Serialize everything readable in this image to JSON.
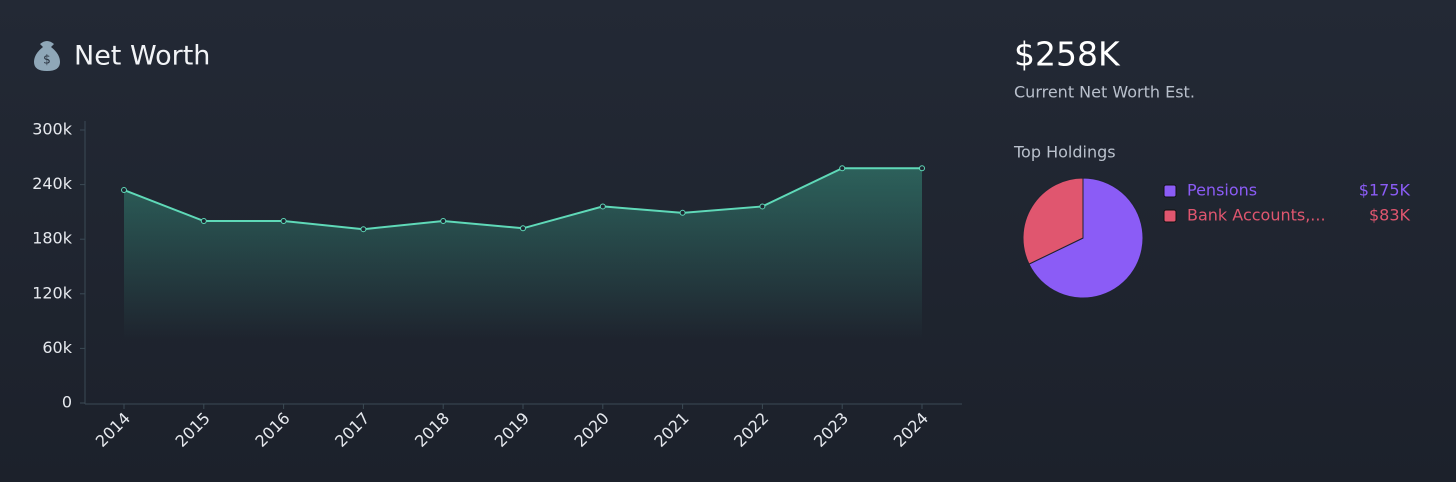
{
  "summary": {
    "value": "$258K",
    "label": "Current Net Worth Est."
  },
  "chart_data": [
    {
      "type": "line",
      "title": "Net Worth",
      "categories": [
        "2014",
        "2015",
        "2016",
        "2017",
        "2018",
        "2019",
        "2020",
        "2021",
        "2022",
        "2023",
        "2024"
      ],
      "values": [
        234000,
        200000,
        200000,
        191000,
        200000,
        192000,
        216000,
        209000,
        216000,
        258000,
        258000
      ],
      "color": "#5fd9b8",
      "ylim": [
        0,
        300000
      ],
      "yticks": [
        0,
        {
          "value": 60000,
          "label": "60k"
        },
        {
          "value": 120000,
          "label": "120k"
        },
        {
          "value": 180000,
          "label": "180k"
        },
        {
          "value": 240000,
          "label": "240k"
        },
        {
          "value": 300000,
          "label": "300k"
        }
      ]
    },
    {
      "type": "pie",
      "title": "Top Holdings",
      "categories": [
        "Pensions",
        "Bank Accounts,..."
      ],
      "values": [
        175,
        83
      ],
      "value_labels": [
        "$175K",
        "$83K"
      ],
      "colors": [
        "#8b5cf6",
        "#e0566f"
      ]
    }
  ]
}
